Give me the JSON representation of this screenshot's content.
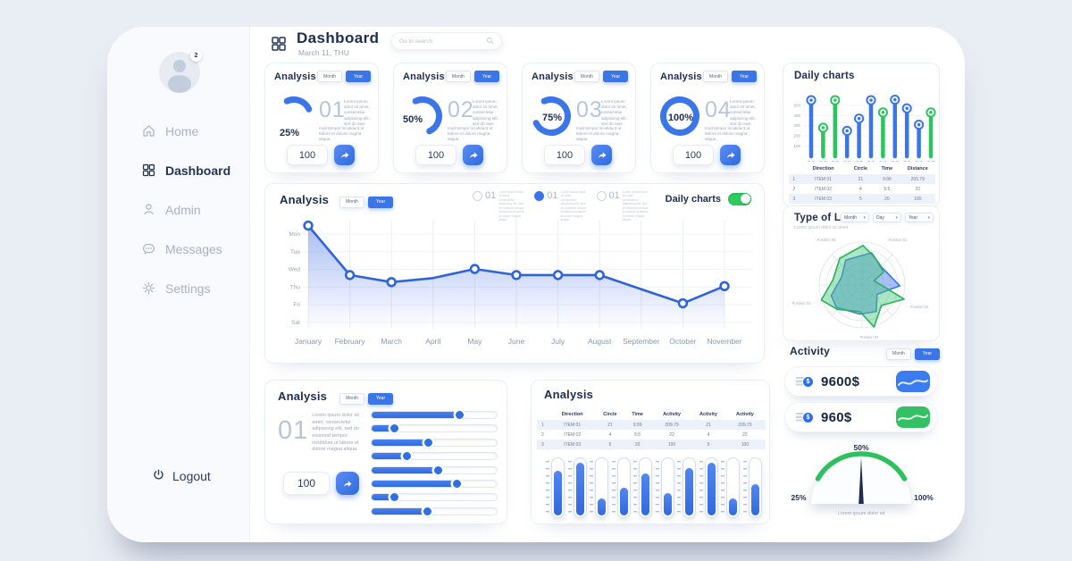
{
  "colors": {
    "primary": "#3b76e9",
    "line": "#2f63d8",
    "green": "#2dc45f",
    "navy": "#1e2c4e",
    "gray": "#9aa6bb"
  },
  "sidebar": {
    "avatar_badge": "2",
    "items": [
      {
        "id": "home",
        "label": "Home",
        "active": false
      },
      {
        "id": "dashboard",
        "label": "Dashboard",
        "active": true
      },
      {
        "id": "admin",
        "label": "Admin",
        "active": false
      },
      {
        "id": "messages",
        "label": "Messages",
        "active": false
      },
      {
        "id": "settings",
        "label": "Settings",
        "active": false
      }
    ],
    "logout_label": "Logout"
  },
  "header": {
    "title": "Dashboard",
    "date": "March 11, THU",
    "search_placeholder": "Go to search"
  },
  "toggle_labels": {
    "month": "Month",
    "year": "Year"
  },
  "stat_cards": [
    {
      "title": "Analysis",
      "percent": 25,
      "percent_label": "25%",
      "number": "01",
      "text": "Lorem ipsum dolor sit amet, consectetur adipiscing elit, sed do eiusmod tempor incididunt ut labore et dolore magna aliqua.",
      "input_value": "100"
    },
    {
      "title": "Analysis",
      "percent": 50,
      "percent_label": "50%",
      "number": "02",
      "text": "Lorem ipsum dolor sit amet, consectetur adipiscing elit, sed do eiusmod tempor incididunt ut labore et dolore magna aliqua.",
      "input_value": "100"
    },
    {
      "title": "Analysis",
      "percent": 75,
      "percent_label": "75%",
      "number": "03",
      "text": "Lorem ipsum dolor sit amet, consectetur adipiscing elit, sed do eiusmod tempor incididunt ut labore et dolore magna aliqua.",
      "input_value": "100"
    },
    {
      "title": "Analysis",
      "percent": 100,
      "percent_label": "100%",
      "number": "04",
      "text": "Lorem ipsum dolor sit amet, consectetur adipiscing elit, sed do eiusmod tempor incididunt ut labore et dolore magna aliqua.",
      "input_value": "100"
    }
  ],
  "line_card": {
    "title": "Analysis",
    "radios": [
      {
        "number": "01",
        "text": "Lorem ipsum dolor sit amet, consectetur adipiscing elit, sed do eiusmod tempor incididunt ut labore et dolore magna aliqua."
      },
      {
        "number": "01",
        "text": "Lorem ipsum dolor sit amet, consectetur adipiscing elit, sed do eiusmod tempor incididunt ut labore et dolore magna aliqua."
      },
      {
        "number": "01",
        "text": "Lorem ipsum dolor sit amet, consectetur adipiscing elit, sed do eiusmod tempor incididunt ut labore et dolore magna aliqua."
      }
    ],
    "selected_radio": 1,
    "daily_toggle_label": "Daily charts",
    "daily_toggle_on": true
  },
  "daily_card": {
    "title": "Daily charts"
  },
  "load_card": {
    "title": "Type of Load",
    "subtitle": "Lorem ipsum dolor sit amet",
    "dropdowns": [
      "Month",
      "Day",
      "Year"
    ]
  },
  "activity_card": {
    "title": "Activity",
    "rows": [
      {
        "amount": "9600$",
        "tile": "blue"
      },
      {
        "amount": "960$",
        "tile": "green"
      }
    ]
  },
  "gauge_card": {
    "caption": "Lorem ipsum  dolor sit"
  },
  "slider_card": {
    "title": "Analysis",
    "number": "01",
    "text": "Lorem ipsum dolor sit amet, consectetur adipiscing elit, sed do eiusmod tempor incididunt ut labore et dolore magna aliqua.",
    "input_value": "100"
  },
  "table_card": {
    "title": "Analysis"
  },
  "chart_data": [
    {
      "id": "stat-donuts",
      "type": "donut",
      "values": [
        25,
        50,
        75,
        100
      ],
      "labels": [
        "25%",
        "50%",
        "75%",
        "100%"
      ]
    },
    {
      "id": "monthly-line",
      "type": "line",
      "x_labels": [
        "January",
        "February",
        "March",
        "April",
        "May",
        "June",
        "July",
        "August",
        "September",
        "October",
        "November"
      ],
      "y_labels": [
        "Mon",
        "Tue",
        "Wed",
        "Thu",
        "Fri",
        "Sat"
      ],
      "points": [
        {
          "x": "January",
          "f": 0.04,
          "marker": true
        },
        {
          "x": "February",
          "f": 0.53,
          "marker": true
        },
        {
          "x": "March",
          "f": 0.6,
          "marker": true
        },
        {
          "x": "April",
          "f": 0.56,
          "marker": false
        },
        {
          "x": "May",
          "f": 0.47,
          "marker": true
        },
        {
          "x": "June",
          "f": 0.53,
          "marker": true
        },
        {
          "x": "July",
          "f": 0.53,
          "marker": true
        },
        {
          "x": "August",
          "f": 0.53,
          "marker": true
        },
        {
          "x": "September",
          "f": 0.67,
          "marker": false
        },
        {
          "x": "October",
          "f": 0.81,
          "marker": true
        },
        {
          "x": "November",
          "f": 0.64,
          "marker": true
        }
      ],
      "grid": true,
      "area_fill": true
    },
    {
      "id": "daily-lollipop",
      "type": "lollipop",
      "y_ticks": [
        500,
        400,
        300,
        200,
        100
      ],
      "ymax": 560,
      "values": [
        550,
        280,
        550,
        250,
        370,
        550,
        430,
        555,
        470,
        310,
        430
      ],
      "colors": [
        "blue",
        "green",
        "green",
        "blue",
        "blue",
        "blue",
        "green",
        "blue",
        "blue",
        "blue",
        "green"
      ]
    },
    {
      "id": "daily-table",
      "type": "table",
      "headers": [
        "",
        "Direction",
        "Circle",
        "Time",
        "Distance"
      ],
      "rows": [
        [
          "1",
          "ITEM 01",
          "21",
          "9:99",
          "205.79"
        ],
        [
          "2",
          "ITEM 02",
          "4",
          "5:5",
          "22"
        ],
        [
          "3",
          "ITEM 03",
          "5",
          "20",
          "100"
        ]
      ]
    },
    {
      "id": "load-radar",
      "type": "radar",
      "rings": 6,
      "spokes": 8,
      "axis_labels": [
        "Position 01",
        "Position 02",
        "Position 03",
        "Position 04",
        "Position 05"
      ],
      "series": [
        {
          "name": "blue",
          "points": [
            [
              0.22,
              -0.75
            ],
            [
              0.45,
              -0.42
            ],
            [
              0.88,
              0.02
            ],
            [
              0.35,
              0.22
            ],
            [
              0.33,
              0.62
            ],
            [
              -0.05,
              0.68
            ],
            [
              -0.6,
              0.52
            ],
            [
              -0.72,
              0.25
            ],
            [
              -0.48,
              -0.18
            ],
            [
              -0.38,
              -0.58
            ]
          ]
        },
        {
          "name": "green",
          "points": [
            [
              0.02,
              -0.92
            ],
            [
              0.3,
              -0.64
            ],
            [
              0.5,
              -0.3
            ],
            [
              0.28,
              -0.1
            ],
            [
              0.98,
              0.33
            ],
            [
              0.45,
              0.48
            ],
            [
              0.28,
              0.98
            ],
            [
              -0.05,
              0.62
            ],
            [
              -0.58,
              0.57
            ],
            [
              -0.95,
              0.35
            ],
            [
              -0.68,
              -0.12
            ],
            [
              -0.52,
              -0.62
            ]
          ]
        }
      ]
    },
    {
      "id": "analysis-sliders",
      "type": "sliders",
      "values": [
        70,
        18,
        45,
        28,
        53,
        68,
        18,
        44
      ]
    },
    {
      "id": "analysis-table",
      "type": "table",
      "headers": [
        "",
        "Direction",
        "Circle",
        "Time",
        "Activity",
        "Activity",
        "Activity"
      ],
      "rows": [
        [
          "1",
          "ITEM 01",
          "21",
          "9:99",
          "209.79",
          "21",
          "209.79"
        ],
        [
          "2",
          "ITEM 02",
          "4",
          "5:5",
          "22",
          "4",
          "22"
        ],
        [
          "3",
          "ITEM 03",
          "5",
          "20",
          "100",
          "5",
          "100"
        ]
      ]
    },
    {
      "id": "capsule-bars",
      "type": "bar",
      "values": [
        80,
        95,
        30,
        50,
        75,
        40,
        85,
        95,
        30,
        55
      ]
    },
    {
      "id": "activity-gauge",
      "type": "gauge",
      "value": 50,
      "labels": [
        "25%",
        "50%",
        "100%"
      ]
    }
  ]
}
